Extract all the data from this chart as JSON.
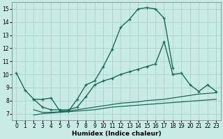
{
  "xlabel": "Humidex (Indice chaleur)",
  "bg_color": "#c8ebe5",
  "grid_color": "#aad4cc",
  "line_color": "#1a6b5a",
  "xlim": [
    -0.5,
    23.5
  ],
  "ylim": [
    6.5,
    15.5
  ],
  "xticks": [
    0,
    1,
    2,
    3,
    4,
    5,
    6,
    7,
    8,
    9,
    10,
    11,
    12,
    13,
    14,
    15,
    16,
    17,
    18,
    19,
    20,
    21,
    22,
    23
  ],
  "yticks": [
    7,
    8,
    9,
    10,
    11,
    12,
    13,
    14,
    15
  ],
  "line1_x": [
    0,
    1,
    2,
    3,
    4,
    5,
    6,
    7,
    8,
    9,
    10,
    11,
    12,
    13,
    14,
    15,
    16,
    17,
    18
  ],
  "line1_y": [
    10.1,
    8.8,
    8.1,
    8.1,
    8.2,
    7.2,
    7.2,
    8.1,
    9.2,
    9.5,
    10.6,
    11.9,
    13.6,
    14.2,
    15.0,
    15.1,
    15.0,
    14.3,
    10.5
  ],
  "line2_x": [
    2,
    3,
    4,
    5,
    6,
    7,
    8,
    9,
    10,
    11,
    12,
    13,
    14,
    15,
    16,
    17,
    18,
    19,
    20,
    21,
    22,
    23
  ],
  "line2_y": [
    8.1,
    7.5,
    7.3,
    7.3,
    7.3,
    7.5,
    8.3,
    9.2,
    9.5,
    9.7,
    10.0,
    10.2,
    10.4,
    10.6,
    10.8,
    12.5,
    10.0,
    10.1,
    9.2,
    8.7,
    9.2,
    8.7
  ],
  "line3_x": [
    2,
    3,
    4,
    5,
    6,
    7,
    8,
    9,
    10,
    11,
    12,
    13,
    14,
    15,
    16,
    17,
    18,
    19,
    20,
    21,
    22,
    23
  ],
  "line3_y": [
    7.3,
    7.1,
    7.1,
    7.15,
    7.2,
    7.3,
    7.4,
    7.5,
    7.6,
    7.7,
    7.8,
    7.85,
    7.9,
    8.0,
    8.05,
    8.1,
    8.2,
    8.3,
    8.4,
    8.5,
    8.55,
    8.6
  ],
  "line4_x": [
    2,
    3,
    4,
    5,
    6,
    7,
    8,
    9,
    10,
    11,
    12,
    13,
    14,
    15,
    16,
    17,
    18,
    19,
    20,
    21,
    22,
    23
  ],
  "line4_y": [
    6.9,
    7.0,
    7.05,
    7.1,
    7.15,
    7.2,
    7.25,
    7.3,
    7.4,
    7.5,
    7.55,
    7.6,
    7.65,
    7.7,
    7.75,
    7.8,
    7.85,
    7.9,
    7.95,
    8.0,
    8.05,
    8.1
  ]
}
